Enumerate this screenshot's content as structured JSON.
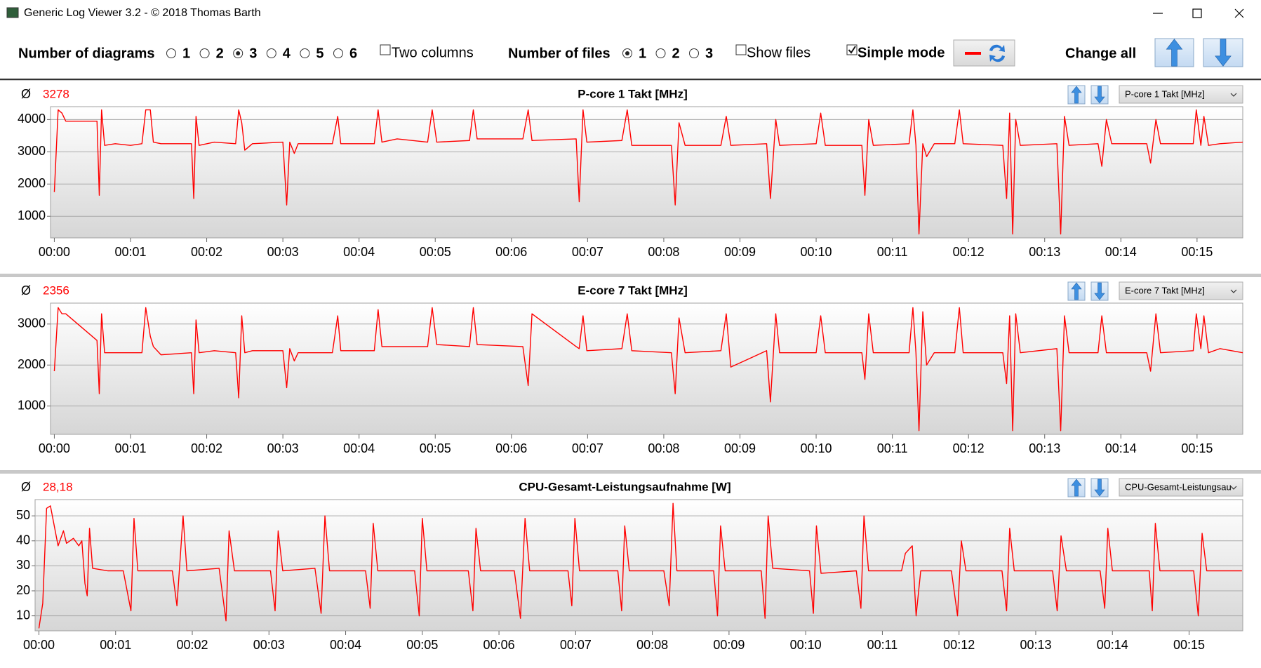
{
  "window": {
    "title": "Generic Log Viewer 3.2 - © 2018 Thomas Barth"
  },
  "toolbar": {
    "diagrams": {
      "label": "Number of diagrams",
      "options": [
        "1",
        "2",
        "3",
        "4",
        "5",
        "6"
      ],
      "selected": "3"
    },
    "two_columns": {
      "label": "Two columns",
      "checked": false
    },
    "files": {
      "label": "Number of files",
      "options": [
        "1",
        "2",
        "3"
      ],
      "selected": "1"
    },
    "show_files": {
      "label": "Show files",
      "checked": false
    },
    "simple_mode": {
      "label": "Simple mode",
      "checked": true
    },
    "change_all": "Change all"
  },
  "chart_data": [
    {
      "type": "line",
      "title": "P-core 1 Takt [MHz]",
      "average_symbol": "Ø",
      "average": "3278",
      "selector": "P-core 1 Takt [MHz]",
      "color": "#ff0000",
      "grid": true,
      "xlim": [
        -0.05,
        15.6
      ],
      "ylim": [
        330,
        4400
      ],
      "yticks": [
        1000,
        2000,
        3000,
        4000
      ],
      "xticks": [
        {
          "value": 0,
          "label": "00:00"
        },
        {
          "value": 1,
          "label": "00:01"
        },
        {
          "value": 2,
          "label": "00:02"
        },
        {
          "value": 3,
          "label": "00:03"
        },
        {
          "value": 4,
          "label": "00:04"
        },
        {
          "value": 5,
          "label": "00:05"
        },
        {
          "value": 6,
          "label": "00:06"
        },
        {
          "value": 7,
          "label": "00:07"
        },
        {
          "value": 8,
          "label": "00:08"
        },
        {
          "value": 9,
          "label": "00:09"
        },
        {
          "value": 10,
          "label": "00:10"
        },
        {
          "value": 11,
          "label": "00:11"
        },
        {
          "value": 12,
          "label": "00:12"
        },
        {
          "value": 13,
          "label": "00:13"
        },
        {
          "value": 14,
          "label": "00:14"
        },
        {
          "value": 15,
          "label": "00:15"
        }
      ],
      "x": [
        0,
        0.05,
        0.1,
        0.15,
        0.56,
        0.59,
        0.62,
        0.66,
        0.8,
        1.0,
        1.15,
        1.2,
        1.26,
        1.3,
        1.4,
        1.8,
        1.83,
        1.86,
        1.9,
        2.1,
        2.38,
        2.42,
        2.46,
        2.5,
        2.6,
        3.0,
        3.05,
        3.09,
        3.15,
        3.2,
        3.65,
        3.72,
        3.76,
        4.2,
        4.25,
        4.3,
        4.5,
        4.9,
        4.96,
        5.02,
        5.45,
        5.5,
        5.55,
        6.15,
        6.22,
        6.27,
        6.85,
        6.89,
        6.94,
        6.99,
        7.45,
        7.52,
        7.58,
        8.1,
        8.15,
        8.2,
        8.28,
        8.75,
        8.82,
        8.88,
        9.35,
        9.4,
        9.47,
        9.52,
        10.0,
        10.06,
        10.12,
        10.6,
        10.64,
        10.69,
        10.75,
        11.22,
        11.27,
        11.31,
        11.35,
        11.4,
        11.45,
        11.55,
        11.82,
        11.88,
        11.93,
        12.45,
        12.5,
        12.54,
        12.58,
        12.62,
        12.68,
        13.16,
        13.21,
        13.26,
        13.32,
        13.7,
        13.75,
        13.81,
        13.88,
        14.34,
        14.39,
        14.46,
        14.52,
        14.95,
        14.99,
        15.05,
        15.09,
        15.15,
        15.3,
        15.6
      ],
      "values": [
        1750,
        4300,
        4200,
        3950,
        3950,
        1650,
        4300,
        3200,
        3250,
        3200,
        3250,
        4300,
        4300,
        3300,
        3250,
        3250,
        1550,
        4100,
        3200,
        3300,
        3250,
        4300,
        3900,
        3050,
        3250,
        3300,
        1350,
        3300,
        2950,
        3250,
        3250,
        4100,
        3250,
        3250,
        4300,
        3300,
        3400,
        3300,
        4300,
        3300,
        3350,
        4300,
        3400,
        3400,
        4300,
        3350,
        3400,
        1450,
        4300,
        3300,
        3350,
        4300,
        3200,
        3200,
        1350,
        3900,
        3200,
        3200,
        4100,
        3200,
        3250,
        1550,
        4000,
        3200,
        3250,
        4200,
        3200,
        3200,
        1650,
        4000,
        3200,
        3250,
        4300,
        3200,
        450,
        3250,
        2850,
        3250,
        3250,
        4300,
        3250,
        3200,
        1550,
        4200,
        450,
        4000,
        3200,
        3250,
        450,
        4100,
        3200,
        3250,
        2550,
        4000,
        3250,
        3250,
        2650,
        4000,
        3250,
        3250,
        4300,
        3200,
        4100,
        3200,
        3250,
        3300
      ]
    },
    {
      "type": "line",
      "title": "E-core 7 Takt [MHz]",
      "average_symbol": "Ø",
      "average": "2356",
      "selector": "E-core 7 Takt [MHz]",
      "color": "#ff0000",
      "grid": true,
      "xlim": [
        -0.05,
        15.6
      ],
      "ylim": [
        310,
        3510
      ],
      "yticks": [
        1000,
        2000,
        3000
      ],
      "xticks": [
        {
          "value": 0,
          "label": "00:00"
        },
        {
          "value": 1,
          "label": "00:01"
        },
        {
          "value": 2,
          "label": "00:02"
        },
        {
          "value": 3,
          "label": "00:03"
        },
        {
          "value": 4,
          "label": "00:04"
        },
        {
          "value": 5,
          "label": "00:05"
        },
        {
          "value": 6,
          "label": "00:06"
        },
        {
          "value": 7,
          "label": "00:07"
        },
        {
          "value": 8,
          "label": "00:08"
        },
        {
          "value": 9,
          "label": "00:09"
        },
        {
          "value": 10,
          "label": "00:10"
        },
        {
          "value": 11,
          "label": "00:11"
        },
        {
          "value": 12,
          "label": "00:12"
        },
        {
          "value": 13,
          "label": "00:13"
        },
        {
          "value": 14,
          "label": "00:14"
        },
        {
          "value": 15,
          "label": "00:15"
        }
      ],
      "x": [
        0,
        0.05,
        0.1,
        0.15,
        0.56,
        0.59,
        0.62,
        0.66,
        0.8,
        1.0,
        1.15,
        1.2,
        1.26,
        1.3,
        1.4,
        1.8,
        1.83,
        1.86,
        1.9,
        2.1,
        2.38,
        2.42,
        2.46,
        2.5,
        2.6,
        3.0,
        3.05,
        3.09,
        3.15,
        3.2,
        3.65,
        3.72,
        3.76,
        4.2,
        4.25,
        4.3,
        4.5,
        4.9,
        4.96,
        5.02,
        5.45,
        5.5,
        5.55,
        6.15,
        6.22,
        6.27,
        6.85,
        6.89,
        6.94,
        6.99,
        7.45,
        7.52,
        7.58,
        8.1,
        8.15,
        8.2,
        8.28,
        8.75,
        8.82,
        8.88,
        9.35,
        9.4,
        9.47,
        9.52,
        10.0,
        10.06,
        10.12,
        10.6,
        10.64,
        10.69,
        10.75,
        11.22,
        11.27,
        11.31,
        11.35,
        11.4,
        11.45,
        11.55,
        11.82,
        11.88,
        11.93,
        12.45,
        12.5,
        12.54,
        12.58,
        12.62,
        12.68,
        13.16,
        13.21,
        13.26,
        13.32,
        13.7,
        13.75,
        13.81,
        13.88,
        14.34,
        14.39,
        14.46,
        14.52,
        14.95,
        14.99,
        15.05,
        15.09,
        15.15,
        15.3,
        15.6
      ],
      "values": [
        1850,
        3400,
        3250,
        3250,
        2600,
        1300,
        3250,
        2300,
        2300,
        2300,
        2300,
        3400,
        2700,
        2450,
        2250,
        2300,
        1300,
        3100,
        2300,
        2350,
        2300,
        1200,
        3200,
        2300,
        2350,
        2350,
        1450,
        2400,
        2100,
        2300,
        2300,
        3200,
        2350,
        2350,
        3350,
        2450,
        2450,
        2450,
        3400,
        2500,
        2450,
        3400,
        2500,
        2450,
        1500,
        3250,
        2450,
        2400,
        3200,
        2350,
        2400,
        3250,
        2350,
        2300,
        1300,
        3150,
        2300,
        2350,
        3250,
        1950,
        2350,
        1100,
        3250,
        2300,
        2300,
        3200,
        2300,
        2300,
        1650,
        3250,
        2300,
        2300,
        3400,
        2300,
        400,
        3300,
        2000,
        2300,
        2300,
        3400,
        2300,
        2300,
        1550,
        3200,
        400,
        3250,
        2300,
        2400,
        400,
        3200,
        2300,
        2300,
        3200,
        2300,
        2300,
        2300,
        1850,
        3250,
        2300,
        2350,
        3250,
        2400,
        3200,
        2300,
        2400,
        2300
      ]
    },
    {
      "type": "line",
      "title": "CPU-Gesamt-Leistungsaufnahme [W]",
      "average_symbol": "Ø",
      "average": "28,18",
      "selector": "CPU-Gesamt-Leistungsau",
      "color": "#ff0000",
      "grid": true,
      "xlim": [
        -0.05,
        15.7
      ],
      "ylim": [
        4,
        56.5
      ],
      "yticks": [
        10,
        20,
        30,
        40,
        50
      ],
      "xticks": [
        {
          "value": 0,
          "label": "00:00"
        },
        {
          "value": 1,
          "label": "00:01"
        },
        {
          "value": 2,
          "label": "00:02"
        },
        {
          "value": 3,
          "label": "00:03"
        },
        {
          "value": 4,
          "label": "00:04"
        },
        {
          "value": 5,
          "label": "00:05"
        },
        {
          "value": 6,
          "label": "00:06"
        },
        {
          "value": 7,
          "label": "00:07"
        },
        {
          "value": 8,
          "label": "00:08"
        },
        {
          "value": 9,
          "label": "00:09"
        },
        {
          "value": 10,
          "label": "00:10"
        },
        {
          "value": 11,
          "label": "00:11"
        },
        {
          "value": 12,
          "label": "00:12"
        },
        {
          "value": 13,
          "label": "00:13"
        },
        {
          "value": 14,
          "label": "00:14"
        },
        {
          "value": 15,
          "label": "00:15"
        }
      ],
      "x": [
        0,
        0.05,
        0.1,
        0.15,
        0.25,
        0.32,
        0.36,
        0.45,
        0.52,
        0.56,
        0.6,
        0.63,
        0.66,
        0.7,
        0.9,
        1.1,
        1.2,
        1.24,
        1.29,
        1.74,
        1.8,
        1.88,
        1.93,
        2.35,
        2.44,
        2.48,
        2.55,
        3.02,
        3.08,
        3.12,
        3.18,
        3.6,
        3.68,
        3.73,
        3.79,
        4.26,
        4.32,
        4.36,
        4.42,
        4.9,
        4.96,
        5.0,
        5.06,
        5.6,
        5.66,
        5.7,
        5.76,
        6.2,
        6.28,
        6.34,
        6.4,
        6.9,
        6.95,
        6.99,
        7.05,
        7.55,
        7.6,
        7.64,
        7.7,
        8.15,
        8.22,
        8.27,
        8.32,
        8.8,
        8.85,
        8.89,
        8.95,
        9.42,
        9.47,
        9.51,
        9.57,
        10.05,
        10.1,
        10.14,
        10.2,
        10.66,
        10.72,
        10.76,
        10.82,
        11.25,
        11.3,
        11.39,
        11.44,
        11.5,
        11.9,
        11.98,
        12.03,
        12.09,
        12.56,
        12.62,
        12.66,
        12.72,
        13.22,
        13.28,
        13.33,
        13.4,
        13.84,
        13.9,
        13.94,
        14.0,
        14.48,
        14.52,
        14.56,
        14.62,
        15.06,
        15.12,
        15.17,
        15.23,
        15.69
      ],
      "values": [
        5,
        15,
        53,
        54,
        38,
        44,
        39,
        41,
        38,
        40,
        23,
        18,
        45,
        29,
        28,
        28,
        12,
        49,
        28,
        28,
        14,
        50,
        28,
        29,
        8,
        44,
        28,
        28,
        12,
        44,
        28,
        29,
        11,
        50,
        28,
        28,
        13,
        47,
        28,
        28,
        10,
        49,
        28,
        28,
        12,
        45,
        28,
        28,
        9,
        49,
        28,
        28,
        14,
        49,
        28,
        28,
        12,
        46,
        28,
        28,
        14,
        55,
        28,
        28,
        10,
        46,
        28,
        28,
        9,
        50,
        29,
        28,
        11,
        46,
        27,
        28,
        13,
        50,
        28,
        28,
        35,
        38,
        10,
        28,
        28,
        10,
        40,
        28,
        28,
        12,
        45,
        28,
        28,
        12,
        42,
        28,
        28,
        13,
        45,
        28,
        28,
        12,
        47,
        28,
        28,
        10,
        43,
        28,
        28
      ]
    }
  ]
}
